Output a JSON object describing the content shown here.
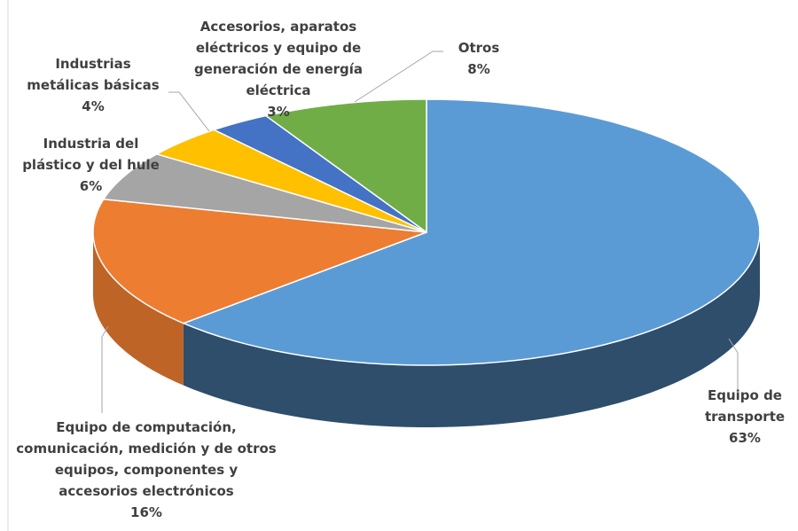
{
  "chart_data": {
    "type": "pie3d",
    "categories": [
      "Equipo de transporte",
      "Equipo de computación, comunicación, medición y de otros equipos, componentes y accesorios electrónicos",
      "Industria del plástico y del hule",
      "Industrias metálicas básicas",
      "Accesorios, aparatos eléctricos y equipo de generación de energía eléctrica",
      "Otros"
    ],
    "values": [
      63,
      16,
      6,
      4,
      3,
      8
    ],
    "value_labels": [
      "63%",
      "16%",
      "6%",
      "4%",
      "3%",
      "8%"
    ],
    "colors": [
      "#5b9bd5",
      "#ed7d31",
      "#a5a5a5",
      "#ffc000",
      "#4472c4",
      "#70ad47"
    ]
  }
}
